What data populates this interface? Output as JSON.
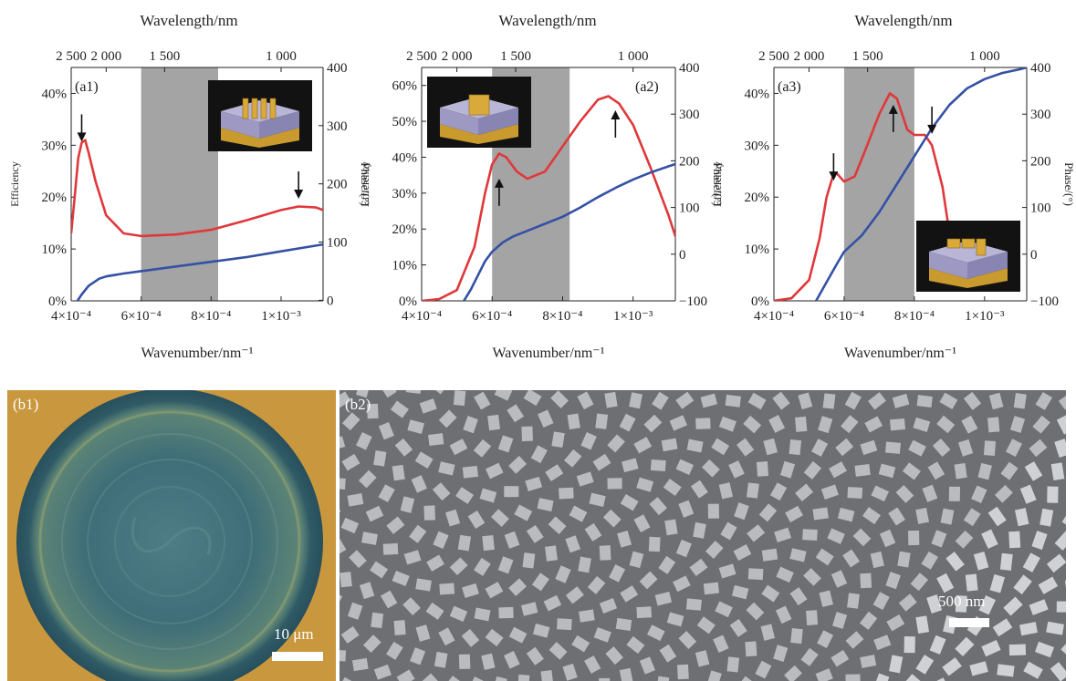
{
  "chart_data": [
    {
      "id": "a1",
      "panel_label": "(a1)",
      "type": "line",
      "xlabel": "Wavenumber/nm⁻¹",
      "top_xlabel": "Wavelength/nm",
      "ylabel": "Efficiency",
      "y2label": "Phase/(°)",
      "xlim": [
        0.0004,
        0.00112
      ],
      "x_ticks": [
        {
          "v": 0.0004,
          "label": "4×10⁻⁴"
        },
        {
          "v": 0.0006,
          "label": "6×10⁻⁴"
        },
        {
          "v": 0.0008,
          "label": "8×10⁻⁴"
        },
        {
          "v": 0.001,
          "label": "1×10⁻³"
        }
      ],
      "top_ticks": [
        {
          "v": 0.0004,
          "label": "2 500"
        },
        {
          "v": 0.0005,
          "label": "2 000"
        },
        {
          "v": 0.000667,
          "label": "1 500"
        },
        {
          "v": 0.001,
          "label": "1 000"
        }
      ],
      "ylim": [
        0,
        0.45
      ],
      "y_ticks": [
        {
          "v": 0,
          "label": "0%"
        },
        {
          "v": 0.1,
          "label": "10%"
        },
        {
          "v": 0.2,
          "label": "20%"
        },
        {
          "v": 0.3,
          "label": "30%"
        },
        {
          "v": 0.4,
          "label": "40%"
        }
      ],
      "y2lim": [
        -1,
        400
      ],
      "y2_ticks": [
        {
          "v": 0,
          "label": "0"
        },
        {
          "v": 100,
          "label": "100"
        },
        {
          "v": 200,
          "label": "200"
        },
        {
          "v": 300,
          "label": "300"
        },
        {
          "v": 400,
          "label": "400"
        }
      ],
      "shaded_region": [
        0.0006,
        0.00082
      ],
      "series": [
        {
          "role": "efficiency",
          "axis": "left",
          "color": "#e0383a",
          "x": [
            0.0004,
            0.00041,
            0.00042,
            0.00043,
            0.00044,
            0.00045,
            0.00047,
            0.0005,
            0.00055,
            0.0006,
            0.0007,
            0.0008,
            0.0009,
            0.00095,
            0.001,
            0.00105,
            0.0011,
            0.00112
          ],
          "y": [
            0.13,
            0.2,
            0.275,
            0.305,
            0.31,
            0.285,
            0.23,
            0.165,
            0.13,
            0.125,
            0.128,
            0.137,
            0.155,
            0.165,
            0.175,
            0.182,
            0.18,
            0.175
          ]
        },
        {
          "role": "phase",
          "axis": "right",
          "color": "#3551a4",
          "x": [
            0.000418,
            0.00043,
            0.00045,
            0.00048,
            0.0005,
            0.00055,
            0.0006,
            0.0007,
            0.0008,
            0.0009,
            0.001,
            0.0011,
            0.00112
          ],
          "y": [
            -1,
            10,
            25,
            37,
            41,
            46,
            50,
            58,
            66,
            74,
            84,
            94,
            96
          ]
        }
      ],
      "markers": [
        {
          "direction": "down",
          "x": 0.00043,
          "y": 0.335
        },
        {
          "direction": "down",
          "x": 0.00105,
          "y": 0.225
        }
      ],
      "inset": {
        "bars": 4
      }
    },
    {
      "id": "a2",
      "panel_label": "(a2)",
      "type": "line",
      "xlabel": "Wavenumber/nm⁻¹",
      "top_xlabel": "Wavelength/nm",
      "ylabel": "Efficiency",
      "y2label": "Phase/(°)",
      "xlim": [
        0.0004,
        0.00112
      ],
      "x_ticks": [
        {
          "v": 0.0004,
          "label": "4×10⁻⁴"
        },
        {
          "v": 0.0006,
          "label": "6×10⁻⁴"
        },
        {
          "v": 0.0008,
          "label": "8×10⁻⁴"
        },
        {
          "v": 0.001,
          "label": "1×10⁻³"
        }
      ],
      "top_ticks": [
        {
          "v": 0.0004,
          "label": "2 500"
        },
        {
          "v": 0.0005,
          "label": "2 000"
        },
        {
          "v": 0.000667,
          "label": "1 500"
        },
        {
          "v": 0.001,
          "label": "1 000"
        }
      ],
      "ylim": [
        0,
        0.65
      ],
      "y_ticks": [
        {
          "v": 0,
          "label": "0%"
        },
        {
          "v": 0.1,
          "label": "10%"
        },
        {
          "v": 0.2,
          "label": "20%"
        },
        {
          "v": 0.3,
          "label": "30%"
        },
        {
          "v": 0.4,
          "label": "40%"
        },
        {
          "v": 0.5,
          "label": "50%"
        },
        {
          "v": 0.6,
          "label": "60%"
        }
      ],
      "y2lim": [
        -100,
        400
      ],
      "y2_ticks": [
        {
          "v": -100,
          "label": "−100"
        },
        {
          "v": 0,
          "label": "0"
        },
        {
          "v": 100,
          "label": "100"
        },
        {
          "v": 200,
          "label": "200"
        },
        {
          "v": 300,
          "label": "300"
        },
        {
          "v": 400,
          "label": "400"
        }
      ],
      "shaded_region": [
        0.0006,
        0.00082
      ],
      "series": [
        {
          "role": "efficiency",
          "axis": "left",
          "color": "#e0383a",
          "x": [
            0.0004,
            0.00045,
            0.0005,
            0.00055,
            0.00058,
            0.0006,
            0.00062,
            0.00064,
            0.00067,
            0.0007,
            0.00075,
            0.0008,
            0.00085,
            0.0009,
            0.00093,
            0.00096,
            0.001,
            0.00105,
            0.0011,
            0.00112
          ],
          "y": [
            0.0,
            0.005,
            0.03,
            0.15,
            0.3,
            0.38,
            0.41,
            0.4,
            0.36,
            0.34,
            0.36,
            0.43,
            0.5,
            0.56,
            0.57,
            0.55,
            0.49,
            0.37,
            0.24,
            0.18
          ]
        },
        {
          "role": "phase",
          "axis": "right",
          "color": "#3551a4",
          "x": [
            0.00052,
            0.00054,
            0.00056,
            0.00058,
            0.0006,
            0.00063,
            0.00066,
            0.0007,
            0.00075,
            0.0008,
            0.00085,
            0.0009,
            0.00095,
            0.001,
            0.00105,
            0.0011,
            0.00112
          ],
          "y": [
            -100,
            -75,
            -45,
            -15,
            5,
            25,
            38,
            50,
            65,
            80,
            100,
            122,
            142,
            160,
            175,
            188,
            193
          ]
        }
      ],
      "markers": [
        {
          "direction": "up",
          "x": 0.00062,
          "y": 0.3
        },
        {
          "direction": "up",
          "x": 0.00095,
          "y": 0.49
        }
      ],
      "inset": {
        "bars": 1
      }
    },
    {
      "id": "a3",
      "panel_label": "(a3)",
      "type": "line",
      "xlabel": "Wavenumber/nm⁻¹",
      "top_xlabel": "Wavelength/nm",
      "ylabel": "Efficiency",
      "y2label": "Phase/(°)",
      "xlim": [
        0.0004,
        0.00112
      ],
      "x_ticks": [
        {
          "v": 0.0004,
          "label": "4×10⁻⁴"
        },
        {
          "v": 0.0006,
          "label": "6×10⁻⁴"
        },
        {
          "v": 0.0008,
          "label": "8×10⁻⁴"
        },
        {
          "v": 0.001,
          "label": "1×10⁻³"
        }
      ],
      "top_ticks": [
        {
          "v": 0.0004,
          "label": "2 500"
        },
        {
          "v": 0.0005,
          "label": "2 000"
        },
        {
          "v": 0.000667,
          "label": "1 500"
        },
        {
          "v": 0.001,
          "label": "1 000"
        }
      ],
      "ylim": [
        0,
        0.45
      ],
      "y_ticks": [
        {
          "v": 0,
          "label": "0%"
        },
        {
          "v": 0.1,
          "label": "10%"
        },
        {
          "v": 0.2,
          "label": "20%"
        },
        {
          "v": 0.3,
          "label": "30%"
        },
        {
          "v": 0.4,
          "label": "40%"
        }
      ],
      "y2lim": [
        -100,
        400
      ],
      "y2_ticks": [
        {
          "v": -100,
          "label": "−100"
        },
        {
          "v": 0,
          "label": "0"
        },
        {
          "v": 100,
          "label": "100"
        },
        {
          "v": 200,
          "label": "200"
        },
        {
          "v": 300,
          "label": "300"
        },
        {
          "v": 400,
          "label": "400"
        }
      ],
      "shaded_region": [
        0.0006,
        0.0008
      ],
      "series": [
        {
          "role": "efficiency",
          "axis": "left",
          "color": "#e0383a",
          "x": [
            0.0004,
            0.00045,
            0.0005,
            0.00053,
            0.00055,
            0.00057,
            0.00058,
            0.0006,
            0.00063,
            0.00066,
            0.0007,
            0.00073,
            0.00075,
            0.00078,
            0.0008,
            0.00083,
            0.00085,
            0.00088,
            0.0009,
            0.00092
          ],
          "y": [
            0.0,
            0.005,
            0.04,
            0.12,
            0.2,
            0.245,
            0.245,
            0.23,
            0.24,
            0.29,
            0.36,
            0.4,
            0.39,
            0.33,
            0.32,
            0.32,
            0.3,
            0.22,
            0.13,
            0.09
          ]
        },
        {
          "role": "phase",
          "axis": "right",
          "color": "#3551a4",
          "x": [
            0.00052,
            0.00055,
            0.00058,
            0.0006,
            0.00065,
            0.0007,
            0.00075,
            0.0008,
            0.00085,
            0.0009,
            0.00095,
            0.001,
            0.00105,
            0.0011,
            0.00112
          ],
          "y": [
            -100,
            -60,
            -20,
            5,
            40,
            90,
            150,
            210,
            270,
            320,
            355,
            375,
            388,
            396,
            400
          ]
        }
      ],
      "markers": [
        {
          "direction": "down",
          "x": 0.00057,
          "y": 0.26
        },
        {
          "direction": "up",
          "x": 0.00074,
          "y": 0.35
        },
        {
          "direction": "down",
          "x": 0.00085,
          "y": 0.35
        }
      ],
      "inset": {
        "bars": 3
      }
    }
  ],
  "micrographs": {
    "b1": {
      "label": "(b1)",
      "scale": "10 μm"
    },
    "b2": {
      "label": "(b2)",
      "scale": "500 nm"
    }
  }
}
